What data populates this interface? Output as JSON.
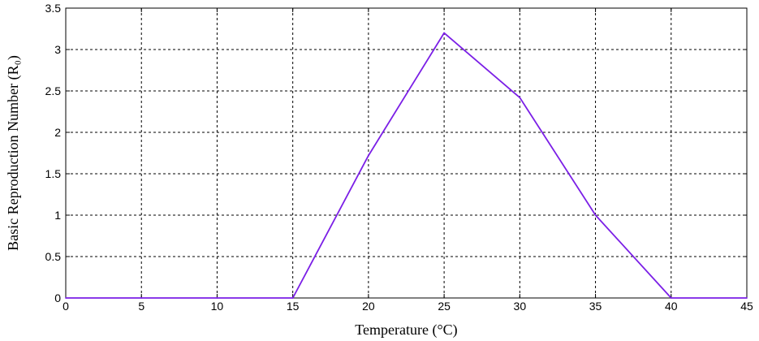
{
  "chart_data": {
    "type": "line",
    "xlabel": "Temperature (°C)",
    "ylabel": "Basic Reproduction Number (R₀)",
    "xlim": [
      0,
      45
    ],
    "ylim": [
      0,
      3.5
    ],
    "xticks": [
      0,
      5,
      10,
      15,
      20,
      25,
      30,
      35,
      40,
      45
    ],
    "yticks": [
      0,
      0.5,
      1,
      1.5,
      2,
      2.5,
      3,
      3.5
    ],
    "xtick_labels": [
      "0",
      "5",
      "10",
      "15",
      "20",
      "25",
      "30",
      "35",
      "40",
      "45"
    ],
    "ytick_labels": [
      "0",
      "0.5",
      "1",
      "1.5",
      "2",
      "2.5",
      "3",
      "3.5"
    ],
    "grid": true,
    "series": [
      {
        "x": [
          0,
          5,
          10,
          15,
          20,
          25,
          30,
          35,
          40,
          45
        ],
        "y": [
          0,
          0,
          0,
          0,
          1.72,
          3.2,
          2.42,
          1.0,
          0,
          0
        ],
        "color": "#7b1fe6"
      }
    ]
  }
}
